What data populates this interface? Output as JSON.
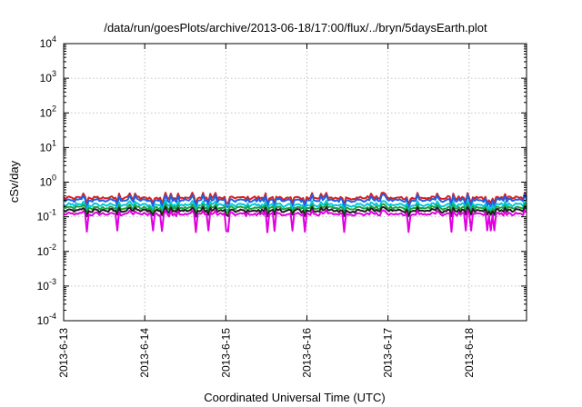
{
  "chart_data": {
    "type": "line",
    "title": "/data/run/goesPlots/archive/2013-06-18/17:00/flux/../bryn/5daysEarth.plot",
    "xlabel": "Coordinated Universal Time (UTC)",
    "ylabel": "cSv/day",
    "yscale": "log",
    "ylim": [
      0.0001,
      10000
    ],
    "xlim": [
      "2013-06-13",
      "2013-06-18T17:00"
    ],
    "grid": true,
    "x_ticks": [
      "2013-6-13",
      "2013-6-14",
      "2013-6-15",
      "2013-6-16",
      "2013-6-17",
      "2013-6-18"
    ],
    "y_ticks": [
      {
        "base": "10",
        "exp": "-4"
      },
      {
        "base": "10",
        "exp": "-3"
      },
      {
        "base": "10",
        "exp": "-2"
      },
      {
        "base": "10",
        "exp": "-1"
      },
      {
        "base": "10",
        "exp": "0"
      },
      {
        "base": "10",
        "exp": "1"
      },
      {
        "base": "10",
        "exp": "2"
      },
      {
        "base": "10",
        "exp": "3"
      },
      {
        "base": "10",
        "exp": "4"
      }
    ],
    "series": [
      {
        "color": "#d62020",
        "typical": 0.35,
        "min": 0.22,
        "max": 0.52
      },
      {
        "color": "#2060e0",
        "typical": 0.3,
        "min": 0.18,
        "max": 0.45
      },
      {
        "color": "#00c8d8",
        "typical": 0.22,
        "min": 0.14,
        "max": 0.3
      },
      {
        "color": "#20a040",
        "typical": 0.18,
        "min": 0.12,
        "max": 0.24
      },
      {
        "color": "#202020",
        "typical": 0.15,
        "min": 0.1,
        "max": 0.2
      },
      {
        "color": "#e000e0",
        "typical": 0.12,
        "min": 0.035,
        "max": 0.16
      }
    ]
  }
}
